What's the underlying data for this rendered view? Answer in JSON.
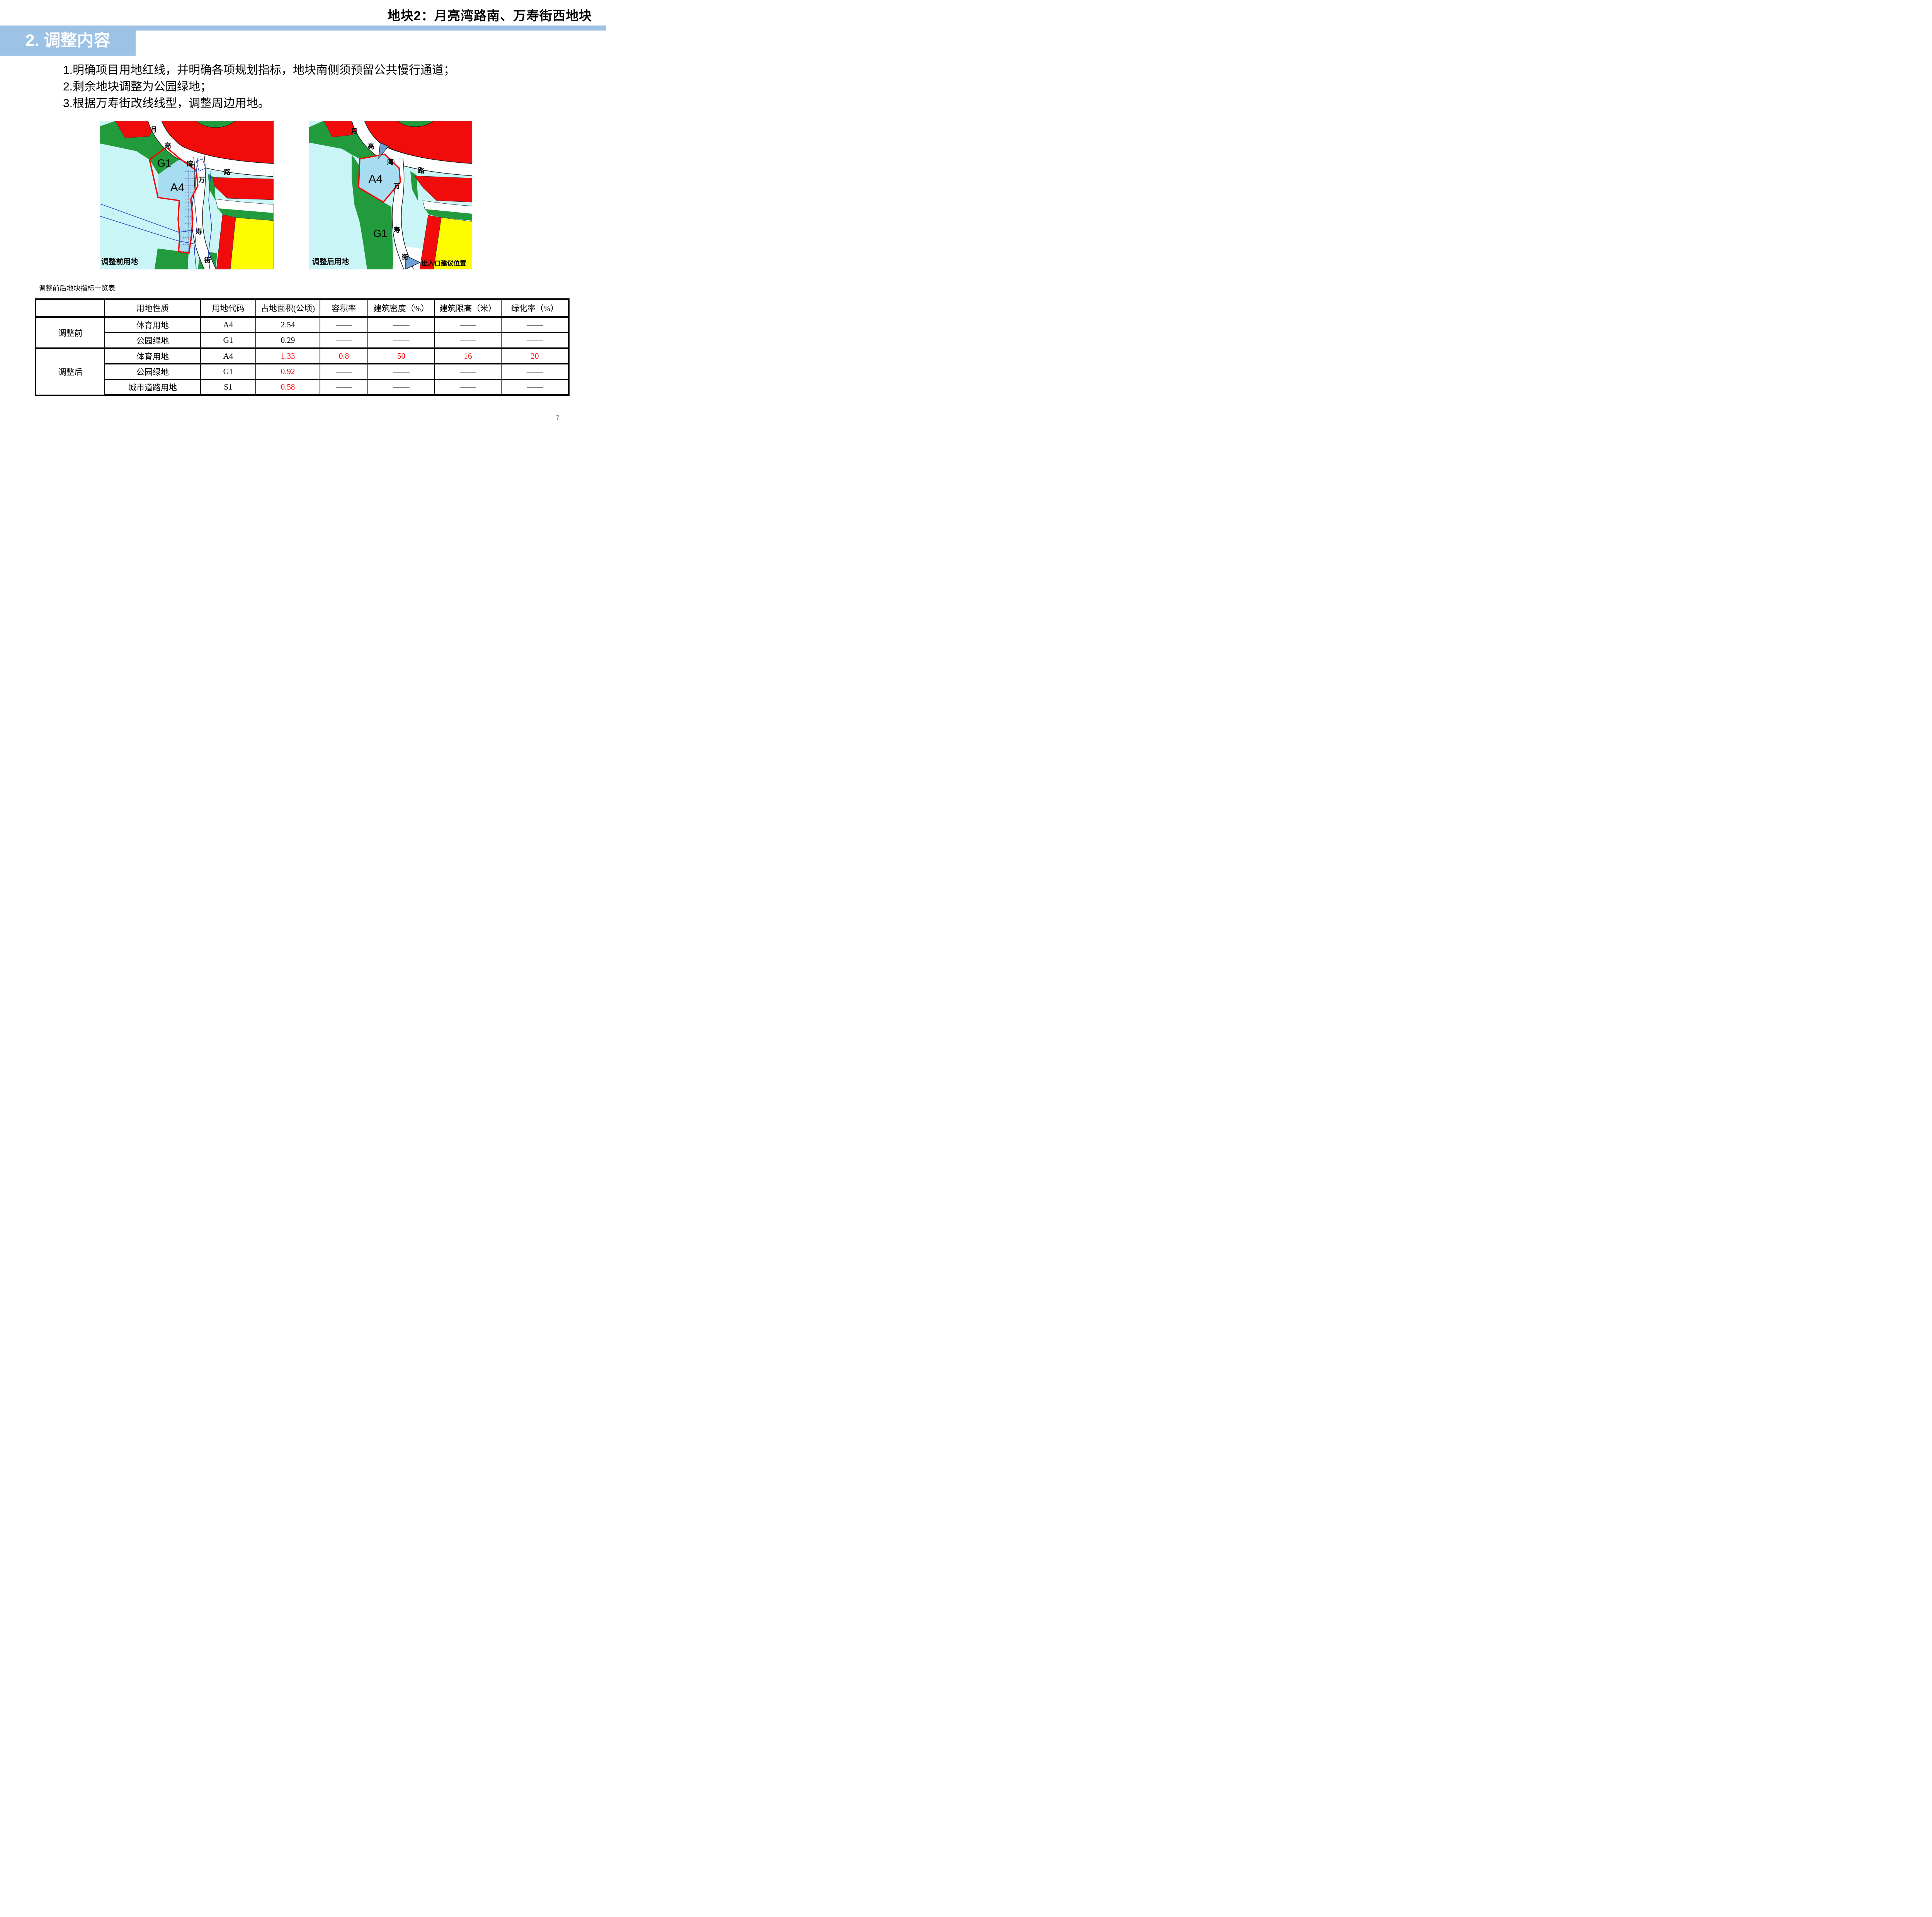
{
  "slide": {
    "title": "地块2：月亮湾路南、万寿街西地块",
    "section_header": "2. 调整内容",
    "bullets": [
      "1.明确项目用地红线，并明确各项规划指标，地块南侧须预留公共慢行通道；",
      "2.剩余地块调整为公园绿地；",
      "3.根据万寿街改线线型，调整周边用地。"
    ],
    "page_number": "7",
    "accent_color": "#9CC2E5"
  },
  "maps": {
    "before": {
      "caption": "调整前用地",
      "plot_labels": {
        "g1": "G1",
        "a4": "A4"
      },
      "road_yueliangwan": [
        "月",
        "亮",
        "湾",
        "路"
      ],
      "road_wanshou": [
        "万",
        "寿",
        "街"
      ]
    },
    "after": {
      "caption": "调整后用地",
      "plot_labels": {
        "g1": "G1",
        "a4": "A4"
      },
      "road_yueliangwan": [
        "月",
        "亮",
        "湾",
        "路"
      ],
      "road_wanshou": [
        "万",
        "寿",
        "街"
      ],
      "entrance_note": "出入口建议位置"
    },
    "legend_colors": {
      "water": "#C9F5F7",
      "green_space": "#229B3C",
      "residential_red": "#F20B0B",
      "plot_blue": "#A8DCF0",
      "commercial_yellow": "#FDFD00",
      "road_white": "#FFFFFF",
      "plot_outline_red": "#FB0000",
      "boundary_blue": "#2233BB",
      "arrow_blue": "#6FA0D2"
    }
  },
  "table": {
    "title": "调整前后地块指标一览表",
    "columns": [
      "",
      "用地性质",
      "用地代码",
      "占地面积(公顷)",
      "容积率",
      "建筑密度（%）",
      "建筑限高（米）",
      "绿化率（%）"
    ],
    "dash": "——",
    "highlight_color": "#FF0000",
    "groups": [
      {
        "label": "调整前",
        "rows": [
          {
            "nature": "体育用地",
            "code": "A4",
            "area": "2.54",
            "far": "——",
            "density": "——",
            "height_limit": "——",
            "green_rate": "——",
            "red_cols": []
          },
          {
            "nature": "公园绿地",
            "code": "G1",
            "area": "0.29",
            "far": "——",
            "density": "——",
            "height_limit": "——",
            "green_rate": "——",
            "red_cols": []
          }
        ]
      },
      {
        "label": "调整后",
        "rows": [
          {
            "nature": "体育用地",
            "code": "A4",
            "area": "1.33",
            "far": "0.8",
            "density": "50",
            "height_limit": "16",
            "green_rate": "20",
            "red_cols": [
              "area",
              "far",
              "density",
              "height_limit",
              "green_rate"
            ]
          },
          {
            "nature": "公园绿地",
            "code": "G1",
            "area": "0.92",
            "far": "——",
            "density": "——",
            "height_limit": "——",
            "green_rate": "——",
            "red_cols": [
              "area"
            ]
          },
          {
            "nature": "城市道路用地",
            "code": "S1",
            "area": "0.58",
            "far": "——",
            "density": "——",
            "height_limit": "——",
            "green_rate": "——",
            "red_cols": [
              "area"
            ]
          }
        ]
      }
    ]
  }
}
